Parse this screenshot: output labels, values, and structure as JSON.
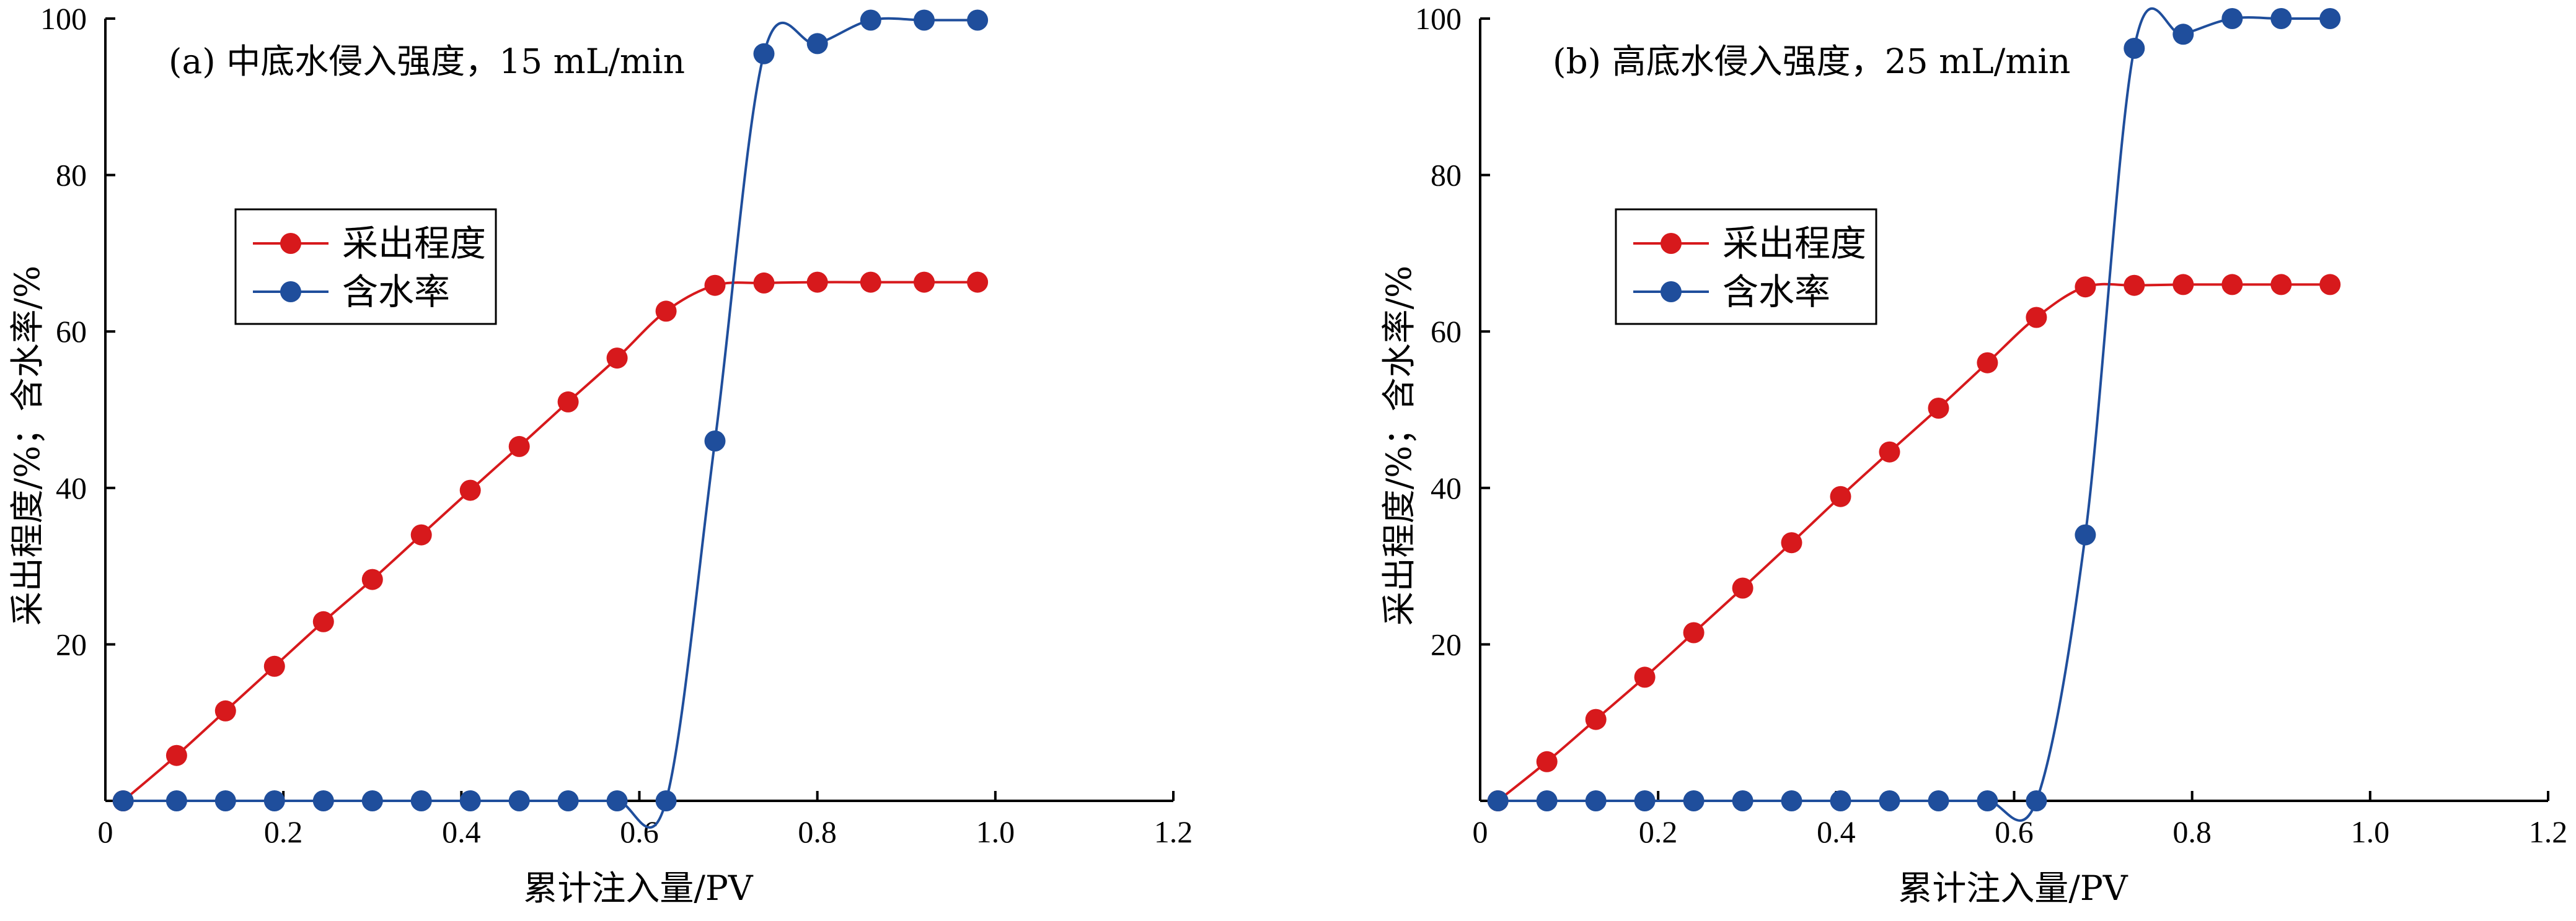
{
  "chart_data": [
    {
      "type": "line",
      "title": "(a) 中底水侵入强度，15 mL/min",
      "xlabel": "累计注入量/PV",
      "ylabel": "采出程度/%；含水率/%",
      "xlim": [
        0,
        1.2
      ],
      "ylim": [
        0,
        100
      ],
      "x_ticks": [
        "0",
        "0.2",
        "0.4",
        "0.6",
        "0.8",
        "1.0",
        "1.2"
      ],
      "y_ticks": [
        "20",
        "40",
        "60",
        "80",
        "100"
      ],
      "legend_position": "upper-left",
      "series": [
        {
          "name": "采出程度",
          "color": "#d7191c",
          "x": [
            0.02,
            0.08,
            0.135,
            0.19,
            0.245,
            0.3,
            0.355,
            0.41,
            0.465,
            0.52,
            0.575,
            0.63,
            0.685,
            0.74,
            0.8,
            0.86,
            0.92,
            0.98
          ],
          "y": [
            0,
            5.8,
            11.5,
            17.2,
            22.9,
            28.3,
            34.0,
            39.7,
            45.3,
            51.0,
            56.6,
            62.6,
            65.9,
            66.2,
            66.3,
            66.3,
            66.3,
            66.3
          ]
        },
        {
          "name": "含水率",
          "color": "#1f4e9c",
          "x": [
            0.02,
            0.08,
            0.135,
            0.19,
            0.245,
            0.3,
            0.355,
            0.41,
            0.465,
            0.52,
            0.575,
            0.63,
            0.685,
            0.74,
            0.8,
            0.86,
            0.92,
            0.98
          ],
          "y": [
            0,
            0,
            0,
            0,
            0,
            0,
            0,
            0,
            0,
            0,
            0,
            0,
            46.0,
            95.5,
            96.8,
            99.8,
            99.8,
            99.8
          ]
        }
      ]
    },
    {
      "type": "line",
      "title": "(b) 高底水侵入强度，25 mL/min",
      "xlabel": "累计注入量/PV",
      "ylabel": "采出程度/%；含水率/%",
      "xlim": [
        0,
        1.2
      ],
      "ylim": [
        0,
        100
      ],
      "x_ticks": [
        "0",
        "0.2",
        "0.4",
        "0.6",
        "0.8",
        "1.0",
        "1.2"
      ],
      "y_ticks": [
        "20",
        "40",
        "60",
        "80",
        "100"
      ],
      "legend_position": "upper-left",
      "series": [
        {
          "name": "采出程度",
          "color": "#d7191c",
          "x": [
            0.02,
            0.075,
            0.13,
            0.185,
            0.24,
            0.295,
            0.35,
            0.405,
            0.46,
            0.515,
            0.57,
            0.625,
            0.68,
            0.735,
            0.79,
            0.845,
            0.9,
            0.955
          ],
          "y": [
            0,
            5.0,
            10.4,
            15.8,
            21.5,
            27.2,
            33.0,
            38.9,
            44.6,
            50.2,
            56.0,
            61.8,
            65.7,
            65.9,
            66.0,
            66.0,
            66.0,
            66.0
          ]
        },
        {
          "name": "含水率",
          "color": "#1f4e9c",
          "x": [
            0.02,
            0.075,
            0.13,
            0.185,
            0.24,
            0.295,
            0.35,
            0.405,
            0.46,
            0.515,
            0.57,
            0.625,
            0.68,
            0.735,
            0.79,
            0.845,
            0.9,
            0.955
          ],
          "y": [
            0,
            0,
            0,
            0,
            0,
            0,
            0,
            0,
            0,
            0,
            0,
            0,
            34.0,
            96.2,
            98.0,
            100,
            100,
            100
          ]
        }
      ]
    }
  ]
}
